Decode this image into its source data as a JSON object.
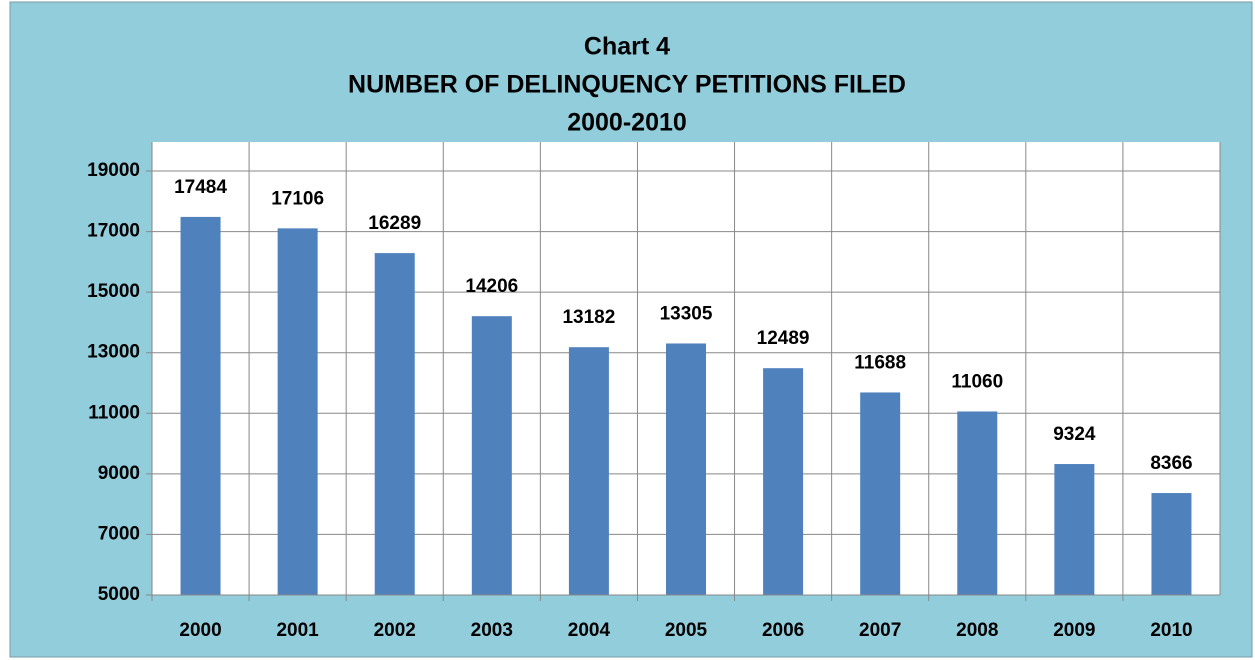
{
  "chart_data": {
    "type": "bar",
    "title": [
      "Chart 4",
      "NUMBER OF DELINQUENCY PETITIONS FILED",
      "2000-2010"
    ],
    "categories": [
      "2000",
      "2001",
      "2002",
      "2003",
      "2004",
      "2005",
      "2006",
      "2007",
      "2008",
      "2009",
      "2010"
    ],
    "values": [
      17484,
      17106,
      16289,
      14206,
      13182,
      13305,
      12489,
      11688,
      11060,
      9324,
      8366
    ],
    "color": "#4f81bd",
    "ylim": [
      5000,
      19000
    ],
    "yticks": [
      5000,
      7000,
      9000,
      11000,
      13000,
      15000,
      17000,
      19000
    ],
    "grid": true
  }
}
